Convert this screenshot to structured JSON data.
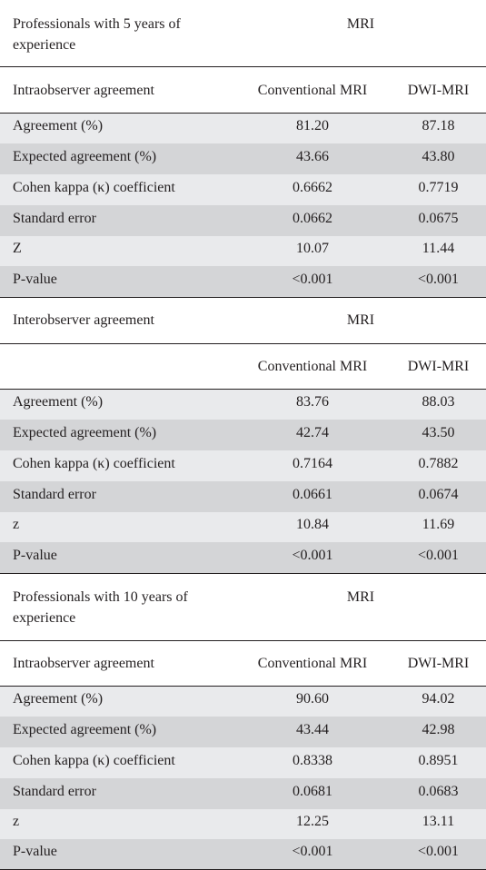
{
  "sections": [
    {
      "group_title": "Professionals with 5 years of experience",
      "group_title_line1": "Professionals with 5 years of",
      "group_title_line2": "experience",
      "group_header": "MRI",
      "subheader_label": "Intraobserver agreement",
      "col_conventional": "Conventional MRI",
      "col_dwi": "DWI-MRI",
      "rows": [
        {
          "label": "Agreement (%)",
          "conventional": "81.20",
          "dwi": "87.18"
        },
        {
          "label": "Expected agreement (%)",
          "conventional": "43.66",
          "dwi": "43.80"
        },
        {
          "label": "Cohen kappa (κ) coefficient",
          "conventional": "0.6662",
          "dwi": "0.7719"
        },
        {
          "label": "Standard error",
          "conventional": "0.0662",
          "dwi": "0.0675"
        },
        {
          "label": "Z",
          "conventional": "10.07",
          "dwi": "11.44"
        },
        {
          "label": "P-value",
          "conventional": "<0.001",
          "dwi": "<0.001"
        }
      ]
    },
    {
      "group_title": "Interobserver agreement",
      "group_header": "MRI",
      "subheader_label": "",
      "col_conventional": "Conventional MRI",
      "col_dwi": "DWI-MRI",
      "rows": [
        {
          "label": "Agreement (%)",
          "conventional": "83.76",
          "dwi": "88.03"
        },
        {
          "label": "Expected agreement (%)",
          "conventional": "42.74",
          "dwi": "43.50"
        },
        {
          "label": "Cohen kappa (κ) coefficient",
          "conventional": "0.7164",
          "dwi": "0.7882"
        },
        {
          "label": "Standard error",
          "conventional": "0.0661",
          "dwi": "0.0674"
        },
        {
          "label": "z",
          "conventional": "10.84",
          "dwi": "11.69"
        },
        {
          "label": "P-value",
          "conventional": "<0.001",
          "dwi": "<0.001"
        }
      ]
    },
    {
      "group_title": "Professionals with 10 years of experience",
      "group_title_line1": "Professionals with 10 years of",
      "group_title_line2": "experience",
      "group_header": "MRI",
      "subheader_label": "Intraobserver agreement",
      "col_conventional": "Conventional MRI",
      "col_dwi": "DWI-MRI",
      "rows": [
        {
          "label": "Agreement (%)",
          "conventional": "90.60",
          "dwi": "94.02"
        },
        {
          "label": "Expected agreement (%)",
          "conventional": "43.44",
          "dwi": "42.98"
        },
        {
          "label": "Cohen kappa (κ) coefficient",
          "conventional": "0.8338",
          "dwi": "0.8951"
        },
        {
          "label": "Standard error",
          "conventional": "0.0681",
          "dwi": "0.0683"
        },
        {
          "label": "z",
          "conventional": "12.25",
          "dwi": "13.11"
        },
        {
          "label": "P-value",
          "conventional": "<0.001",
          "dwi": "<0.001"
        }
      ]
    }
  ],
  "colors": {
    "text": "#231f20",
    "row_shade_light": "#e9eaec",
    "row_shade_dark": "#d4d5d7",
    "rule": "#231f20"
  }
}
